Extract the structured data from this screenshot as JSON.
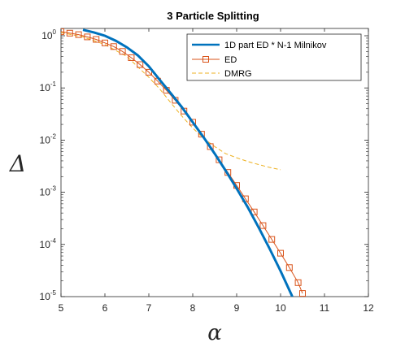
{
  "chart_data": {
    "type": "line",
    "title": "3 Particle Splitting",
    "xlabel": "α",
    "ylabel": "Δ",
    "xlim": [
      5,
      12
    ],
    "ylim": [
      1e-05,
      2
    ],
    "yscale": "log",
    "grid": false,
    "legend_position": "top-right",
    "x_ticks": [
      "5",
      "6",
      "7",
      "8",
      "9",
      "10",
      "11",
      "12"
    ],
    "y_ticks": [
      {
        "base": "10",
        "exp": "0",
        "value": 1
      },
      {
        "base": "10",
        "exp": "-1",
        "value": 0.1
      },
      {
        "base": "10",
        "exp": "-2",
        "value": 0.01
      },
      {
        "base": "10",
        "exp": "-3",
        "value": 0.001
      },
      {
        "base": "10",
        "exp": "-4",
        "value": 0.0001
      },
      {
        "base": "10",
        "exp": "-5",
        "value": 1e-05
      }
    ],
    "series": [
      {
        "name": "1D part ED * N-1 Milnikov",
        "color": "#0072bd",
        "style": "thick",
        "x": [
          5.5,
          5.75,
          6.0,
          6.25,
          6.5,
          6.75,
          7.0,
          7.25,
          7.5,
          7.75,
          8.0,
          8.25,
          8.5,
          8.75,
          9.0,
          9.25,
          9.5,
          9.75,
          10.0,
          10.25,
          10.5
        ],
        "y": [
          1.3,
          1.16,
          1.0,
          0.8,
          0.6,
          0.42,
          0.26,
          0.142,
          0.079,
          0.043,
          0.022,
          0.0112,
          0.0055,
          0.0026,
          0.00118,
          0.00052,
          0.000212,
          8.3e-05,
          3.1e-05,
          1.08e-05,
          3.4e-06
        ]
      },
      {
        "name": "ED",
        "color": "#d95319",
        "style": "square-markers",
        "x": [
          5.0,
          5.2,
          5.4,
          5.6,
          5.8,
          6.0,
          6.2,
          6.4,
          6.6,
          6.8,
          7.0,
          7.2,
          7.4,
          7.6,
          7.8,
          8.0,
          8.2,
          8.4,
          8.6,
          8.8,
          9.0,
          9.2,
          9.4,
          9.6,
          9.8,
          10.0,
          10.2,
          10.4,
          10.5
        ],
        "y": [
          1.2,
          1.12,
          1.05,
          0.95,
          0.85,
          0.73,
          0.62,
          0.5,
          0.38,
          0.28,
          0.2,
          0.135,
          0.09,
          0.058,
          0.036,
          0.022,
          0.013,
          0.0075,
          0.0042,
          0.0024,
          0.00135,
          0.00075,
          0.00042,
          0.00023,
          0.000125,
          6.8e-05,
          3.6e-05,
          1.85e-05,
          1.15e-05
        ]
      },
      {
        "name": "DMRG",
        "color": "#edb120",
        "style": "dashed",
        "x": [
          5.0,
          5.5,
          6.0,
          6.5,
          7.0,
          7.25,
          7.5,
          7.75,
          8.0,
          8.25,
          8.5,
          8.75,
          9.0,
          9.25,
          9.5,
          9.75,
          10.0
        ],
        "y": [
          1.15,
          0.95,
          0.68,
          0.4,
          0.16,
          0.095,
          0.052,
          0.029,
          0.017,
          0.0108,
          0.0075,
          0.0055,
          0.0046,
          0.0039,
          0.0034,
          0.003,
          0.0027
        ]
      }
    ]
  }
}
